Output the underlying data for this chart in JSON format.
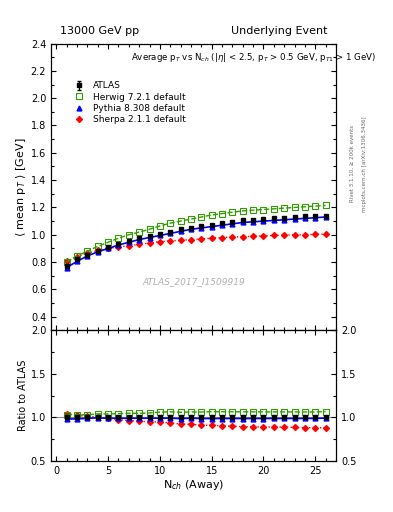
{
  "title_left": "13000 GeV pp",
  "title_right": "Underlying Event",
  "xlabel": "N$_{ch}$ (Away)",
  "ylabel_main": "$\\langle$ mean p$_T$ $\\rangle$ [GeV]",
  "ylabel_ratio": "Ratio to ATLAS",
  "annotation": "Average p$_T$ vs N$_{ch}$ (|$\\eta$| < 2.5, p$_T$ > 0.5 GeV, p$_{T1}$ > 1 GeV)",
  "watermark": "ATLAS_2017_I1509919",
  "rivet_text": "Rivet 3.1.10, ≥ 200k events",
  "mcplots_text": "mcplots.cern.ch [arXiv:1306.3436]",
  "ylim_main": [
    0.3,
    2.4
  ],
  "ylim_ratio": [
    0.5,
    2.0
  ],
  "xlim": [
    -0.5,
    27
  ],
  "yticks_main": [
    0.4,
    0.6,
    0.8,
    1.0,
    1.2,
    1.4,
    1.6,
    1.8,
    2.0,
    2.2,
    2.4
  ],
  "yticks_ratio": [
    0.5,
    1.0,
    1.5,
    2.0
  ],
  "xticks": [
    0,
    5,
    10,
    15,
    20,
    25
  ],
  "atlas_x": [
    1,
    2,
    3,
    4,
    5,
    6,
    7,
    8,
    9,
    10,
    11,
    12,
    13,
    14,
    15,
    16,
    17,
    18,
    19,
    20,
    21,
    22,
    23,
    24,
    25,
    26
  ],
  "atlas_y": [
    0.775,
    0.82,
    0.855,
    0.88,
    0.91,
    0.935,
    0.955,
    0.975,
    0.99,
    1.005,
    1.02,
    1.04,
    1.05,
    1.065,
    1.075,
    1.085,
    1.095,
    1.105,
    1.11,
    1.115,
    1.12,
    1.125,
    1.13,
    1.135,
    1.14,
    1.14
  ],
  "atlas_yerr": [
    0.01,
    0.008,
    0.007,
    0.007,
    0.006,
    0.006,
    0.005,
    0.005,
    0.005,
    0.005,
    0.005,
    0.005,
    0.005,
    0.005,
    0.005,
    0.005,
    0.005,
    0.005,
    0.005,
    0.005,
    0.005,
    0.005,
    0.005,
    0.005,
    0.005,
    0.005
  ],
  "herwig_x": [
    1,
    2,
    3,
    4,
    5,
    6,
    7,
    8,
    9,
    10,
    11,
    12,
    13,
    14,
    15,
    16,
    17,
    18,
    19,
    20,
    21,
    22,
    23,
    24,
    25,
    26
  ],
  "herwig_y": [
    0.8,
    0.845,
    0.88,
    0.915,
    0.945,
    0.975,
    1.0,
    1.02,
    1.04,
    1.065,
    1.085,
    1.1,
    1.115,
    1.13,
    1.145,
    1.155,
    1.165,
    1.175,
    1.18,
    1.185,
    1.19,
    1.195,
    1.2,
    1.205,
    1.21,
    1.215
  ],
  "pythia_x": [
    1,
    2,
    3,
    4,
    5,
    6,
    7,
    8,
    9,
    10,
    11,
    12,
    13,
    14,
    15,
    16,
    17,
    18,
    19,
    20,
    21,
    22,
    23,
    24,
    25,
    26
  ],
  "pythia_y": [
    0.76,
    0.805,
    0.845,
    0.875,
    0.9,
    0.925,
    0.945,
    0.965,
    0.98,
    0.995,
    1.01,
    1.025,
    1.04,
    1.05,
    1.06,
    1.07,
    1.08,
    1.09,
    1.095,
    1.1,
    1.105,
    1.11,
    1.115,
    1.12,
    1.125,
    1.13
  ],
  "sherpa_x": [
    1,
    2,
    3,
    4,
    5,
    6,
    7,
    8,
    9,
    10,
    11,
    12,
    13,
    14,
    15,
    16,
    17,
    18,
    19,
    20,
    21,
    22,
    23,
    24,
    25,
    26
  ],
  "sherpa_y": [
    0.805,
    0.84,
    0.865,
    0.885,
    0.9,
    0.91,
    0.92,
    0.93,
    0.94,
    0.95,
    0.955,
    0.96,
    0.965,
    0.97,
    0.975,
    0.98,
    0.983,
    0.986,
    0.989,
    0.992,
    0.995,
    0.997,
    0.999,
    1.001,
    1.003,
    1.005
  ],
  "atlas_color": "#000000",
  "herwig_color": "#339900",
  "pythia_color": "#0000ff",
  "sherpa_color": "#ff0000",
  "legend_labels": [
    "ATLAS",
    "Herwig 7.2.1 default",
    "Pythia 8.308 default",
    "Sherpa 2.1.1 default"
  ]
}
